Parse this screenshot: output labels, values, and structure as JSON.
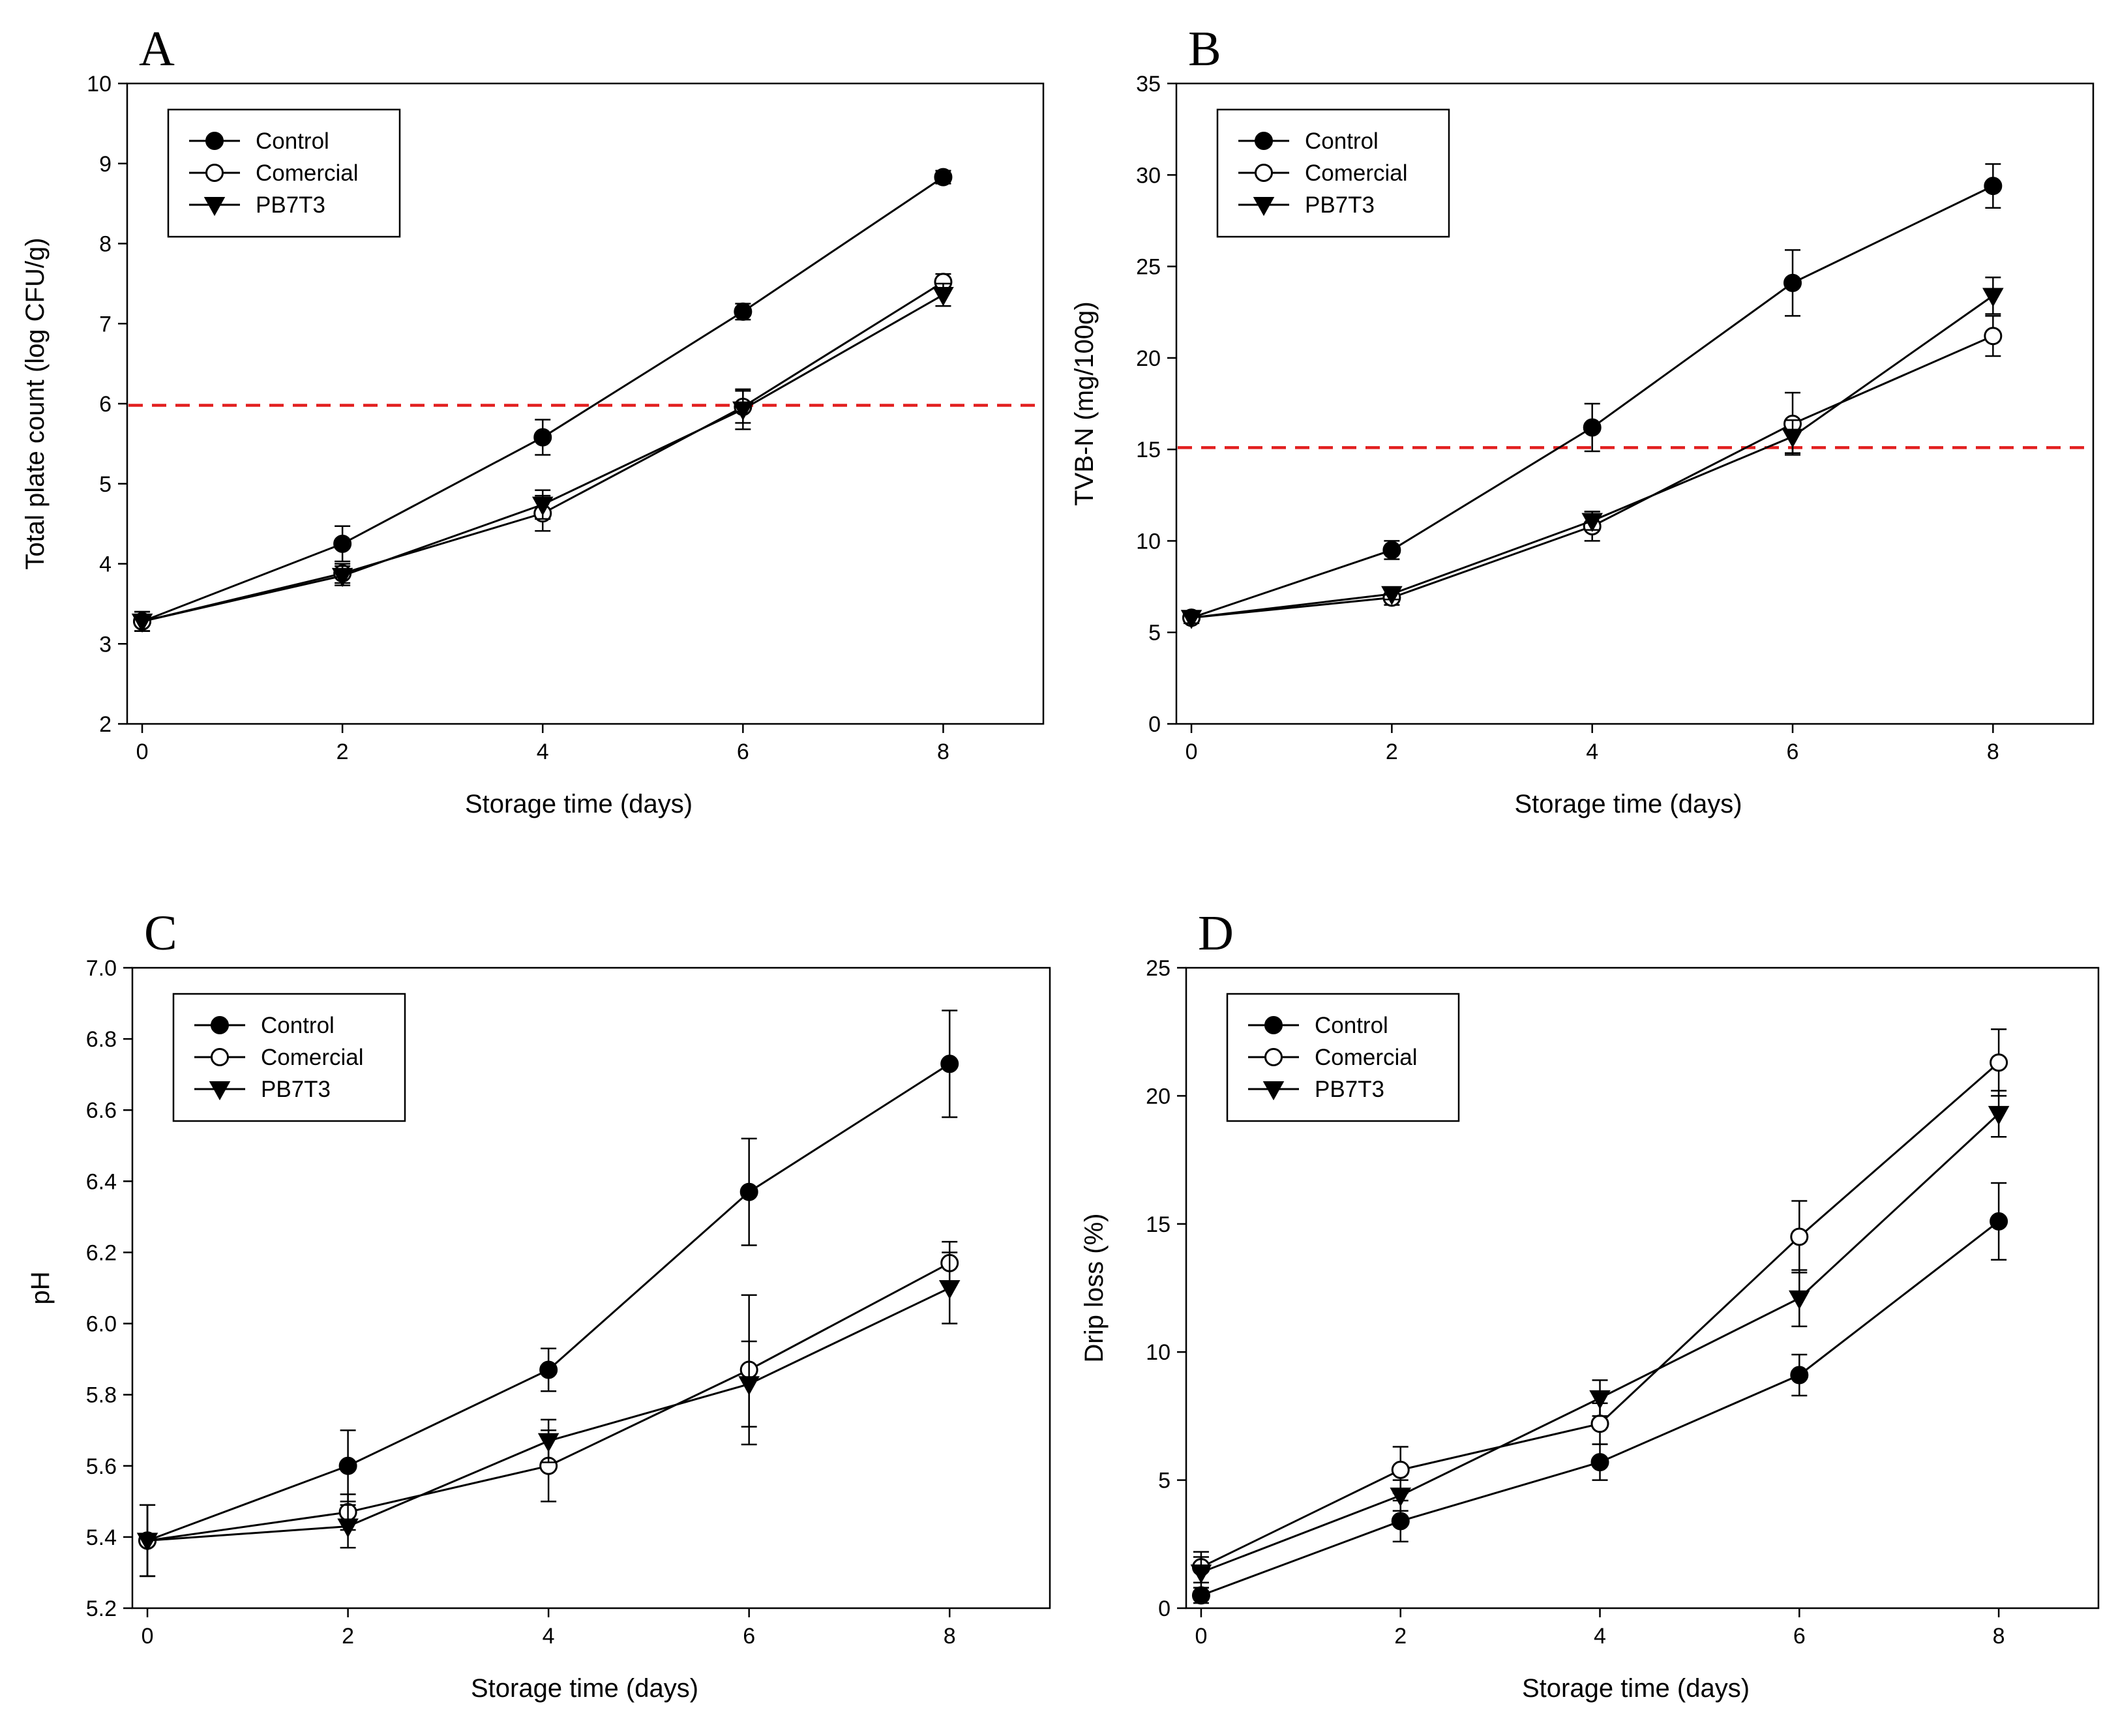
{
  "chart_data": [
    {
      "panel": "A",
      "type": "line",
      "xlabel": "Storage time (days)",
      "ylabel": "Total plate count (log CFU/g)",
      "xlim": [
        -0.15,
        9
      ],
      "ylim": [
        2,
        10
      ],
      "xticks": [
        0,
        2,
        4,
        6,
        8
      ],
      "yticks": [
        2,
        3,
        4,
        5,
        6,
        7,
        8,
        9,
        10
      ],
      "tick_decimals": 0,
      "reference_line": 5.98,
      "legend": {
        "position": "top-left",
        "entries": [
          "Control",
          "Comercial",
          "PB7T3"
        ]
      },
      "x": [
        0,
        2,
        4,
        6,
        8
      ],
      "series": [
        {
          "name": "Control",
          "marker": "filled-circle",
          "values": [
            3.28,
            4.25,
            5.58,
            7.15,
            8.83
          ],
          "errors": [
            0.12,
            0.22,
            0.22,
            0.1,
            0.08
          ]
        },
        {
          "name": "Comercial",
          "marker": "open-circle",
          "values": [
            3.28,
            3.88,
            4.63,
            5.96,
            7.52
          ],
          "errors": [
            0.12,
            0.12,
            0.22,
            0.2,
            0.1
          ]
        },
        {
          "name": "PB7T3",
          "marker": "filled-triangle-down",
          "values": [
            3.28,
            3.85,
            4.74,
            5.93,
            7.36
          ],
          "errors": [
            0.12,
            0.12,
            0.18,
            0.25,
            0.14
          ]
        }
      ]
    },
    {
      "panel": "B",
      "type": "line",
      "xlabel": "Storage time (days)",
      "ylabel": "TVB-N (mg/100g)",
      "xlim": [
        -0.15,
        9
      ],
      "ylim": [
        0,
        35
      ],
      "xticks": [
        0,
        2,
        4,
        6,
        8
      ],
      "yticks": [
        0,
        5,
        10,
        15,
        20,
        25,
        30,
        35
      ],
      "tick_decimals": 0,
      "reference_line": 15.1,
      "legend": {
        "position": "top-left",
        "entries": [
          "Control",
          "Comercial",
          "PB7T3"
        ]
      },
      "x": [
        0,
        2,
        4,
        6,
        8
      ],
      "series": [
        {
          "name": "Control",
          "marker": "filled-circle",
          "values": [
            5.8,
            9.5,
            16.2,
            24.1,
            29.4
          ],
          "errors": [
            0.3,
            0.5,
            1.3,
            1.8,
            1.2
          ]
        },
        {
          "name": "Comercial",
          "marker": "open-circle",
          "values": [
            5.8,
            6.9,
            10.8,
            16.4,
            21.2
          ],
          "errors": [
            0.3,
            0.4,
            0.8,
            1.7,
            1.1
          ]
        },
        {
          "name": "PB7T3",
          "marker": "filled-triangle-down",
          "values": [
            5.8,
            7.1,
            11.1,
            15.7,
            23.4
          ],
          "errors": [
            0.3,
            0.3,
            0.5,
            0.9,
            1.0
          ]
        }
      ]
    },
    {
      "panel": "C",
      "type": "line",
      "xlabel": "Storage time (days)",
      "ylabel": "pH",
      "xlim": [
        -0.15,
        9
      ],
      "ylim": [
        5.2,
        7.0
      ],
      "xticks": [
        0,
        2,
        4,
        6,
        8
      ],
      "yticks": [
        5.2,
        5.4,
        5.6,
        5.8,
        6.0,
        6.2,
        6.4,
        6.6,
        6.8,
        7.0
      ],
      "tick_decimals": 1,
      "legend": {
        "position": "top-left",
        "entries": [
          "Control",
          "Comercial",
          "PB7T3"
        ]
      },
      "x": [
        0,
        2,
        4,
        6,
        8
      ],
      "series": [
        {
          "name": "Control",
          "marker": "filled-circle",
          "values": [
            5.39,
            5.6,
            5.87,
            6.37,
            6.73
          ],
          "errors": [
            0.1,
            0.1,
            0.06,
            0.15,
            0.15
          ]
        },
        {
          "name": "Comercial",
          "marker": "open-circle",
          "values": [
            5.39,
            5.47,
            5.6,
            5.87,
            6.17
          ],
          "errors": [
            0.1,
            0.05,
            0.1,
            0.21,
            0.06
          ]
        },
        {
          "name": "PB7T3",
          "marker": "filled-triangle-down",
          "values": [
            5.39,
            5.43,
            5.67,
            5.83,
            6.1
          ],
          "errors": [
            0.1,
            0.06,
            0.06,
            0.12,
            0.1
          ]
        }
      ]
    },
    {
      "panel": "D",
      "type": "line",
      "xlabel": "Storage time (days)",
      "ylabel": "Drip loss (%)",
      "xlim": [
        -0.15,
        9
      ],
      "ylim": [
        0,
        25
      ],
      "xticks": [
        0,
        2,
        4,
        6,
        8
      ],
      "yticks": [
        0,
        5,
        10,
        15,
        20,
        25
      ],
      "tick_decimals": 0,
      "legend": {
        "position": "top-left",
        "entries": [
          "Control",
          "Comercial",
          "PB7T3"
        ]
      },
      "x": [
        0,
        2,
        4,
        6,
        8
      ],
      "series": [
        {
          "name": "Control",
          "marker": "filled-circle",
          "values": [
            0.5,
            3.4,
            5.7,
            9.1,
            15.1
          ],
          "errors": [
            0.3,
            0.8,
            0.7,
            0.8,
            1.5
          ]
        },
        {
          "name": "Comercial",
          "marker": "open-circle",
          "values": [
            1.6,
            5.4,
            7.2,
            14.5,
            21.3
          ],
          "errors": [
            0.6,
            0.9,
            0.8,
            1.4,
            1.3
          ]
        },
        {
          "name": "PB7T3",
          "marker": "filled-triangle-down",
          "values": [
            1.4,
            4.4,
            8.2,
            12.1,
            19.3
          ],
          "errors": [
            0.6,
            0.6,
            0.7,
            1.1,
            0.9
          ]
        }
      ]
    }
  ]
}
